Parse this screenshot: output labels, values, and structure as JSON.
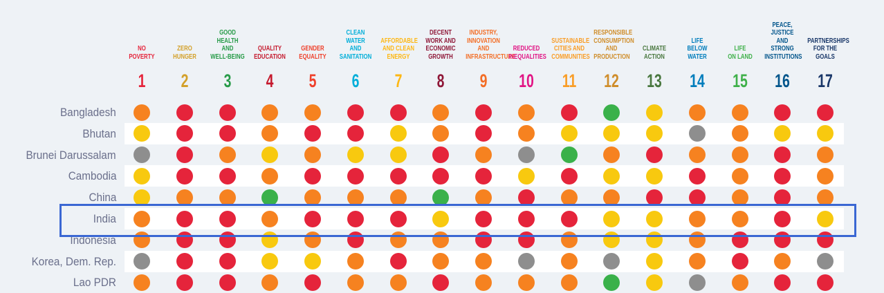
{
  "chart_data": {
    "type": "heatmap",
    "colors": {
      "red": "#e5243b",
      "orange": "#f68220",
      "yellow": "#f8c90f",
      "green": "#3ab14a",
      "grey": "#8e8e8e"
    },
    "goals": [
      {
        "number": "1",
        "title": "NO\nPOVERTY",
        "color": "#e5243b"
      },
      {
        "number": "2",
        "title": "ZERO\nHUNGER",
        "color": "#d3a029"
      },
      {
        "number": "3",
        "title": "GOOD HEALTH\nAND\nWELL-BEING",
        "color": "#279b48"
      },
      {
        "number": "4",
        "title": "QUALITY\nEDUCATION",
        "color": "#c5192d"
      },
      {
        "number": "5",
        "title": "GENDER\nEQUALITY",
        "color": "#ef402b"
      },
      {
        "number": "6",
        "title": "CLEAN WATER\nAND\nSANITATION",
        "color": "#00aed9"
      },
      {
        "number": "7",
        "title": "AFFORDABLE\nAND CLEAN\nENERGY",
        "color": "#fdb713"
      },
      {
        "number": "8",
        "title": "DECENT\nWORK AND\nECONOMIC\nGROWTH",
        "color": "#8f1838"
      },
      {
        "number": "9",
        "title": "INDUSTRY,\nINNOVATION\nAND\nINFRASTRUCTURE",
        "color": "#f36d25"
      },
      {
        "number": "10",
        "title": "REDUCED\nINEQUALITIES",
        "color": "#e11484"
      },
      {
        "number": "11",
        "title": "SUSTAINABLE\nCITIES AND\nCOMMUNITIES",
        "color": "#f99d26"
      },
      {
        "number": "12",
        "title": "RESPONSIBLE\nCONSUMPTION\nAND\nPRODUCTION",
        "color": "#cf8d2a"
      },
      {
        "number": "13",
        "title": "CLIMATE\nACTION",
        "color": "#48773e"
      },
      {
        "number": "14",
        "title": "LIFE\nBELOW\nWATER",
        "color": "#007dbc"
      },
      {
        "number": "15",
        "title": "LIFE\nON LAND",
        "color": "#3eb049"
      },
      {
        "number": "16",
        "title": "PEACE,\nJUSTICE\nAND STRONG\nINSTITUTIONS",
        "color": "#02558b"
      },
      {
        "number": "17",
        "title": "PARTNERSHIPS\nFOR THE\nGOALS",
        "color": "#183668"
      }
    ],
    "rows": [
      {
        "country": "Bangladesh",
        "values": [
          "orange",
          "red",
          "red",
          "orange",
          "orange",
          "red",
          "red",
          "orange",
          "red",
          "orange",
          "red",
          "green",
          "yellow",
          "orange",
          "orange",
          "red",
          "red"
        ]
      },
      {
        "country": "Bhutan",
        "values": [
          "yellow",
          "red",
          "red",
          "orange",
          "red",
          "red",
          "yellow",
          "orange",
          "red",
          "orange",
          "yellow",
          "yellow",
          "yellow",
          "grey",
          "orange",
          "yellow",
          "yellow"
        ]
      },
      {
        "country": "Brunei Darussalam",
        "values": [
          "grey",
          "red",
          "orange",
          "yellow",
          "orange",
          "yellow",
          "yellow",
          "red",
          "orange",
          "grey",
          "green",
          "orange",
          "red",
          "orange",
          "orange",
          "red",
          "orange"
        ]
      },
      {
        "country": "Cambodia",
        "values": [
          "yellow",
          "red",
          "red",
          "orange",
          "red",
          "red",
          "red",
          "red",
          "red",
          "yellow",
          "red",
          "yellow",
          "yellow",
          "red",
          "orange",
          "red",
          "orange"
        ]
      },
      {
        "country": "China",
        "values": [
          "yellow",
          "orange",
          "orange",
          "green",
          "orange",
          "orange",
          "orange",
          "green",
          "orange",
          "red",
          "orange",
          "orange",
          "red",
          "red",
          "orange",
          "red",
          "orange"
        ]
      },
      {
        "country": "India",
        "values": [
          "orange",
          "red",
          "red",
          "orange",
          "red",
          "red",
          "red",
          "yellow",
          "red",
          "red",
          "red",
          "yellow",
          "yellow",
          "orange",
          "orange",
          "red",
          "yellow"
        ]
      },
      {
        "country": "Indonesia",
        "values": [
          "orange",
          "red",
          "red",
          "yellow",
          "orange",
          "red",
          "orange",
          "orange",
          "red",
          "red",
          "orange",
          "yellow",
          "yellow",
          "orange",
          "red",
          "red",
          "red"
        ]
      },
      {
        "country": "Korea, Dem. Rep.",
        "values": [
          "grey",
          "red",
          "red",
          "yellow",
          "yellow",
          "orange",
          "red",
          "orange",
          "orange",
          "grey",
          "orange",
          "grey",
          "yellow",
          "orange",
          "red",
          "orange",
          "grey"
        ]
      },
      {
        "country": "Lao PDR",
        "values": [
          "orange",
          "red",
          "red",
          "orange",
          "red",
          "orange",
          "orange",
          "red",
          "orange",
          "orange",
          "orange",
          "green",
          "yellow",
          "grey",
          "orange",
          "red",
          "red"
        ]
      }
    ],
    "highlighted_row": "India"
  }
}
